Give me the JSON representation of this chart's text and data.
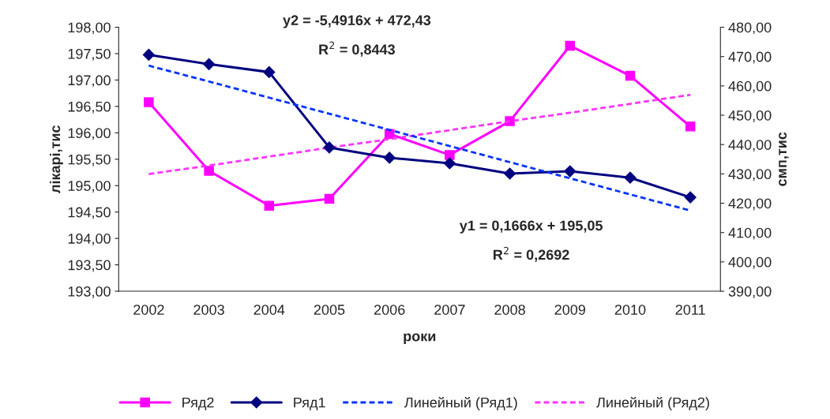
{
  "chart_data": {
    "type": "line",
    "xlabel": "роки",
    "ylabel": "лікарі,тис",
    "y2label": "смп,тис",
    "categories": [
      "2002",
      "2003",
      "2004",
      "2005",
      "2006",
      "2007",
      "2008",
      "2009",
      "2010",
      "2011"
    ],
    "series": [
      {
        "name": "Ряд2",
        "color": "#ff00ff",
        "marker": "square",
        "line_style": "solid",
        "values": [
          196.58,
          195.28,
          194.62,
          194.75,
          195.98,
          195.58,
          196.22,
          197.65,
          197.08,
          196.12
        ]
      },
      {
        "name": "Ряд1",
        "color": "#000080",
        "marker": "diamond",
        "line_style": "solid",
        "axis": "y2",
        "values": [
          470.6,
          467.4,
          464.7,
          439.0,
          435.5,
          433.6,
          430.1,
          430.9,
          428.7,
          422.0
        ]
      },
      {
        "name": "Линейный (Ряд1)",
        "color": "#0033ff",
        "marker": "none",
        "line_style": "dashed",
        "axis": "y2",
        "values": [
          466.9,
          461.5,
          456.0,
          450.5,
          445.0,
          439.5,
          434.0,
          428.5,
          423.0,
          417.5
        ]
      },
      {
        "name": "Линейный (Ряд2)",
        "color": "#ff33ff",
        "marker": "none",
        "line_style": "dashed",
        "values": [
          195.22,
          195.38,
          195.55,
          195.72,
          195.88,
          196.05,
          196.22,
          196.38,
          196.55,
          196.72
        ]
      }
    ],
    "ylim": [
      193,
      198
    ],
    "yticks": [
      {
        "value": 193,
        "label": "193,00"
      },
      {
        "value": 193.5,
        "label": "193,50"
      },
      {
        "value": 194,
        "label": "194,00"
      },
      {
        "value": 194.5,
        "label": "194,50"
      },
      {
        "value": 195,
        "label": "195,00"
      },
      {
        "value": 195.5,
        "label": "195,50"
      },
      {
        "value": 196,
        "label": "196,00"
      },
      {
        "value": 196.5,
        "label": "196,50"
      },
      {
        "value": 197,
        "label": "197,00"
      },
      {
        "value": 197.5,
        "label": "197,50"
      },
      {
        "value": 198,
        "label": "198,00"
      }
    ],
    "y2lim": [
      390,
      480
    ],
    "y2ticks": [
      {
        "value": 390,
        "label": "390,00"
      },
      {
        "value": 400,
        "label": "400,00"
      },
      {
        "value": 410,
        "label": "410,00"
      },
      {
        "value": 420,
        "label": "420,00"
      },
      {
        "value": 430,
        "label": "430,00"
      },
      {
        "value": 440,
        "label": "440,00"
      },
      {
        "value": 450,
        "label": "450,00"
      },
      {
        "value": 460,
        "label": "460,00"
      },
      {
        "value": 470,
        "label": "470,00"
      },
      {
        "value": 480,
        "label": "480,00"
      }
    ],
    "annotations": [
      "y2 = -5,4916x + 472,43",
      "R$^{2}$ = 0,8443",
      "y1 = 0,1666x + 195,05",
      "R$^{2}$ = 0,2692"
    ],
    "grid": false,
    "legend": "bottom"
  }
}
